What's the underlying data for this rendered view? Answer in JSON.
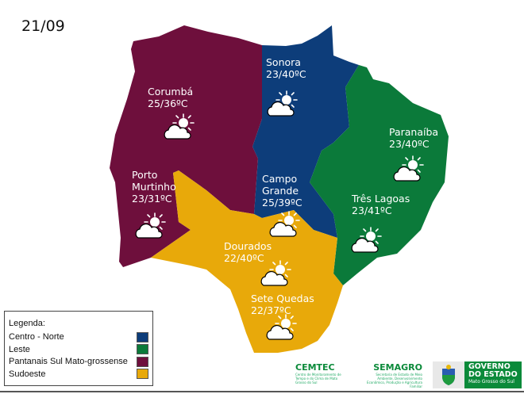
{
  "date": "21/09",
  "colors": {
    "centro_norte": "#0d3d7a",
    "leste": "#0b7a3a",
    "pantanais": "#6e0f3c",
    "sudoeste": "#e8a90a"
  },
  "cities": [
    {
      "name": "Corumbá",
      "temp": "25/36ºC",
      "icon": "partly-cloudy-icon"
    },
    {
      "name": "Porto Murtinho",
      "name_lines": [
        "Porto",
        "Murtinho"
      ],
      "temp": "23/31ºC",
      "icon": "partly-cloudy-icon"
    },
    {
      "name": "Sonora",
      "temp": "23/40ºC",
      "icon": "partly-cloudy-icon"
    },
    {
      "name": "Campo Grande",
      "name_lines": [
        "Campo",
        "Grande"
      ],
      "temp": "25/39ºC",
      "icon": "partly-cloudy-icon"
    },
    {
      "name": "Paranaíba",
      "temp": "23/40ºC",
      "icon": "partly-cloudy-icon"
    },
    {
      "name": "Três Lagoas",
      "temp": "23/41ºC",
      "icon": "partly-cloudy-icon"
    },
    {
      "name": "Dourados",
      "temp": "22/40ºC",
      "icon": "partly-cloudy-icon"
    },
    {
      "name": "Sete Quedas",
      "temp": "22/37ºC",
      "icon": "partly-cloudy-icon"
    }
  ],
  "legend": {
    "title": "Legenda:",
    "items": [
      "Centro - Norte",
      "Leste",
      "Pantanais Sul Mato-grossense",
      "Sudoeste"
    ]
  },
  "logos": {
    "cemtec": {
      "name": "CEMTEC",
      "sub": "Centro de Monitoramento de Tempo e do Clima de Mato Grosso do Sul"
    },
    "semagro": {
      "name": "SEMAGRO",
      "sub": "Secretaria de Estado de Meio Ambiente, Desenvolvimento Econômico, Produção e Agricultura Familiar"
    },
    "governo": {
      "line1": "GOVERNO",
      "line2": "DO ESTADO",
      "line3": "Mato Grosso do Sul"
    }
  }
}
